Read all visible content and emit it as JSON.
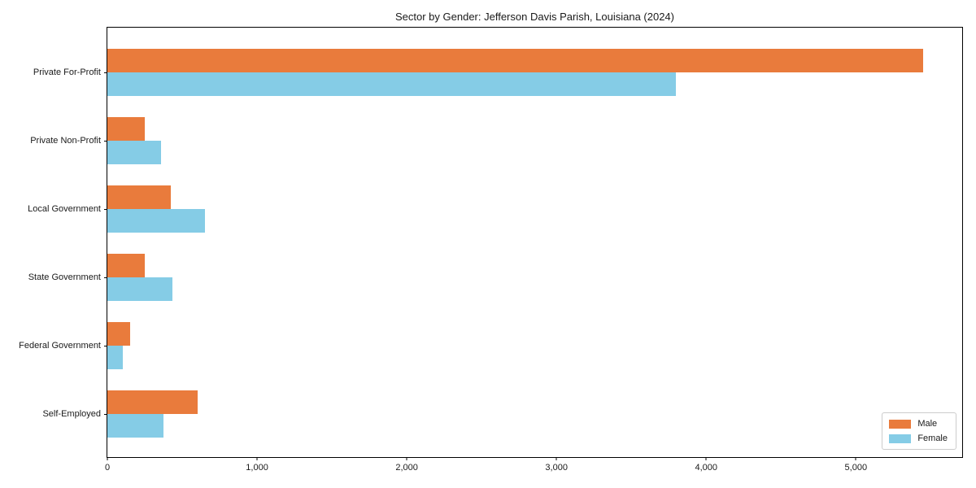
{
  "title": "Sector by Gender: Jefferson Davis Parish, Louisiana (2024)",
  "colors": {
    "male": "#E97B3C",
    "female": "#85CCE6",
    "axis": "#000000",
    "legend_border": "#CCCCCC",
    "background": "#FFFFFF"
  },
  "legend": {
    "position": "lower right",
    "items": [
      {
        "label": "Male"
      },
      {
        "label": "Female"
      }
    ]
  },
  "x_axis": {
    "tick_labels": [
      "0",
      "1,000",
      "2,000",
      "3,000",
      "4,000",
      "5,000"
    ],
    "tick_values": [
      0,
      1000,
      2000,
      3000,
      4000,
      5000
    ]
  },
  "chart_data": {
    "type": "bar",
    "orientation": "horizontal",
    "title": "Sector by Gender: Jefferson Davis Parish, Louisiana (2024)",
    "categories": [
      "Private For-Profit",
      "Private Non-Profit",
      "Local Government",
      "State Government",
      "Federal Government",
      "Self-Employed"
    ],
    "series": [
      {
        "name": "Male",
        "color": "#E97B3C",
        "values": [
          5450,
          250,
          425,
          250,
          150,
          605
        ]
      },
      {
        "name": "Female",
        "color": "#85CCE6",
        "values": [
          3800,
          360,
          650,
          435,
          105,
          375
        ]
      }
    ],
    "xlabel": "",
    "ylabel": "",
    "xlim": [
      0,
      5710
    ],
    "grid": false,
    "legend_position": "lower right"
  }
}
